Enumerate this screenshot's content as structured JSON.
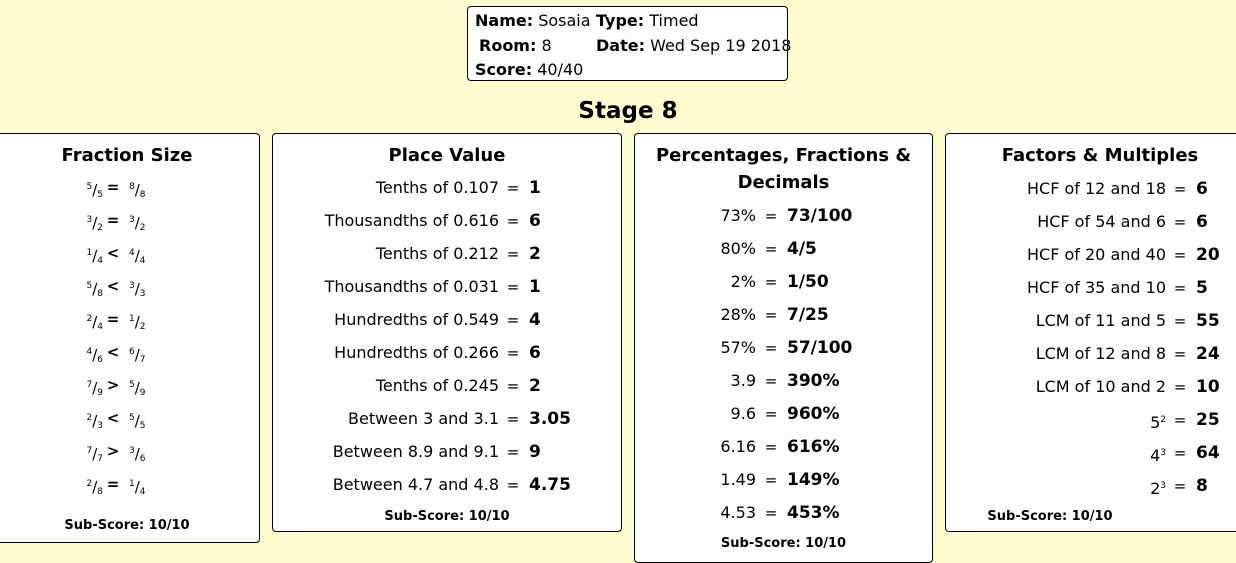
{
  "info": {
    "name_label": "Name:",
    "name": "Sosaia",
    "type_label": "Type:",
    "type": "Timed",
    "room_label": "Room:",
    "room": "8",
    "date_label": "Date:",
    "date": "Wed Sep 19 2018",
    "score_label": "Score:",
    "score": "40/40"
  },
  "stage": "Stage 8",
  "fraction_size": {
    "title": "Fraction Size",
    "rows": [
      {
        "ln": "5",
        "ld": "5",
        "op": "=",
        "rn": "8",
        "rd": "8"
      },
      {
        "ln": "3",
        "ld": "2",
        "op": "=",
        "rn": "3",
        "rd": "2"
      },
      {
        "ln": "1",
        "ld": "4",
        "op": "<",
        "rn": "4",
        "rd": "4"
      },
      {
        "ln": "5",
        "ld": "8",
        "op": "<",
        "rn": "3",
        "rd": "3"
      },
      {
        "ln": "2",
        "ld": "4",
        "op": "=",
        "rn": "1",
        "rd": "2"
      },
      {
        "ln": "4",
        "ld": "6",
        "op": "<",
        "rn": "6",
        "rd": "7"
      },
      {
        "ln": "7",
        "ld": "9",
        "op": ">",
        "rn": "5",
        "rd": "9"
      },
      {
        "ln": "2",
        "ld": "3",
        "op": "<",
        "rn": "5",
        "rd": "5"
      },
      {
        "ln": "7",
        "ld": "7",
        "op": ">",
        "rn": "3",
        "rd": "6"
      },
      {
        "ln": "2",
        "ld": "8",
        "op": "=",
        "rn": "1",
        "rd": "4"
      }
    ],
    "sub_score": "Sub-Score: 10/10"
  },
  "place_value": {
    "title": "Place Value",
    "rows": [
      {
        "q": "Tenths of 0.107",
        "op": "=",
        "a": "1"
      },
      {
        "q": "Thousandths of 0.616",
        "op": "=",
        "a": "6"
      },
      {
        "q": "Tenths of 0.212",
        "op": "=",
        "a": "2"
      },
      {
        "q": "Thousandths of 0.031",
        "op": "=",
        "a": "1"
      },
      {
        "q": "Hundredths of 0.549",
        "op": "=",
        "a": "4"
      },
      {
        "q": "Hundredths of 0.266",
        "op": "=",
        "a": "6"
      },
      {
        "q": "Tenths of 0.245",
        "op": "=",
        "a": "2"
      },
      {
        "q": "Between 3 and 3.1",
        "op": "=",
        "a": "3.05"
      },
      {
        "q": "Between 8.9 and 9.1",
        "op": "=",
        "a": "9"
      },
      {
        "q": "Between 4.7 and 4.8",
        "op": "=",
        "a": "4.75"
      }
    ],
    "sub_score": "Sub-Score: 10/10"
  },
  "percentages": {
    "title_line1": "Percentages, Fractions &",
    "title_line2": "Decimals",
    "rows": [
      {
        "q": "73%",
        "op": "=",
        "a": "73/100"
      },
      {
        "q": "80%",
        "op": "=",
        "a": "4/5"
      },
      {
        "q": "2%",
        "op": "=",
        "a": "1/50"
      },
      {
        "q": "28%",
        "op": "=",
        "a": "7/25"
      },
      {
        "q": "57%",
        "op": "=",
        "a": "57/100"
      },
      {
        "q": "3.9",
        "op": "=",
        "a": "390%"
      },
      {
        "q": "9.6",
        "op": "=",
        "a": "960%"
      },
      {
        "q": "6.16",
        "op": "=",
        "a": "616%"
      },
      {
        "q": "1.49",
        "op": "=",
        "a": "149%"
      },
      {
        "q": "4.53",
        "op": "=",
        "a": "453%"
      }
    ],
    "sub_score": "Sub-Score: 10/10"
  },
  "factors": {
    "title": "Factors & Multiples",
    "rows": [
      {
        "q": "HCF of 12 and 18",
        "op": "=",
        "a": "6"
      },
      {
        "q": "HCF of 54 and 6",
        "op": "=",
        "a": "6"
      },
      {
        "q": "HCF of 20 and 40",
        "op": "=",
        "a": "20"
      },
      {
        "q": "HCF of 35 and 10",
        "op": "=",
        "a": "5"
      },
      {
        "q": "LCM of 11 and 5",
        "op": "=",
        "a": "55"
      },
      {
        "q": "LCM of 12 and 8",
        "op": "=",
        "a": "24"
      },
      {
        "q": "LCM of 10 and 2",
        "op": "=",
        "a": "10"
      },
      {
        "q": "5",
        "sup": "2",
        "op": "=",
        "a": "25"
      },
      {
        "q": "4",
        "sup": "3",
        "op": "=",
        "a": "64"
      },
      {
        "q": "2",
        "sup": "3",
        "op": "=",
        "a": "8"
      }
    ],
    "sub_score": "Sub-Score: 10/10"
  }
}
